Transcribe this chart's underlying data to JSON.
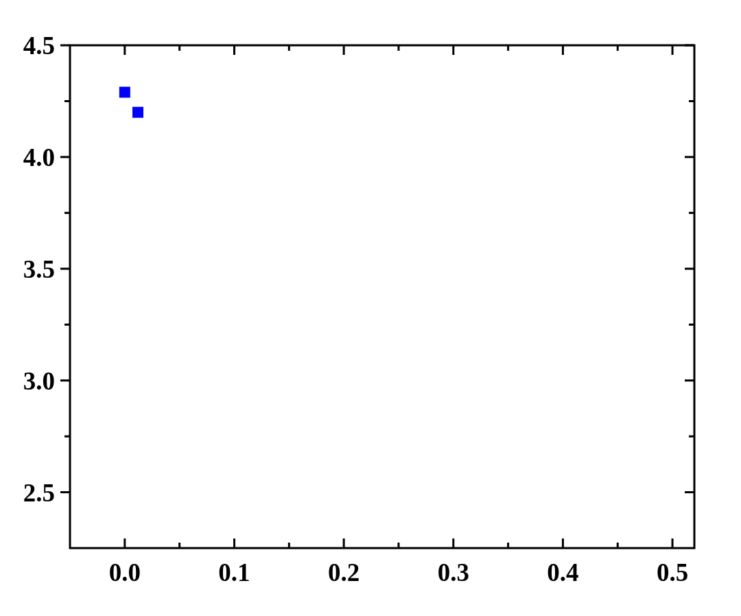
{
  "chart_data": {
    "type": "scatter",
    "x": [
      0,
      0.012
    ],
    "values": [
      4.29,
      4.2
    ],
    "color": "#0000ff",
    "marker": "square",
    "xlim": [
      -0.05,
      0.52
    ],
    "ylim": [
      2.25,
      4.5
    ],
    "xticks": [
      {
        "value": 0,
        "label": "0.0"
      },
      {
        "value": 0.05,
        "label": null
      },
      0.1,
      {
        "value": 0.15,
        "label": null
      },
      0.2,
      {
        "value": 0.25,
        "label": null
      },
      0.3,
      {
        "value": 0.35,
        "label": null
      },
      0.4,
      {
        "value": 0.45,
        "label": null
      },
      0.5
    ],
    "yticks": [
      {
        "value": 2.5,
        "label": "2.5"
      },
      {
        "value": 2.75,
        "label": null
      },
      {
        "value": 3,
        "label": "3.0"
      },
      {
        "value": 3.25,
        "label": null
      },
      {
        "value": 3.5,
        "label": "3.5"
      },
      {
        "value": 3.75,
        "label": null
      },
      {
        "value": 4,
        "label": "4.0"
      },
      {
        "value": 4.25,
        "label": null
      },
      {
        "value": 4.5,
        "label": "4.5"
      }
    ]
  }
}
